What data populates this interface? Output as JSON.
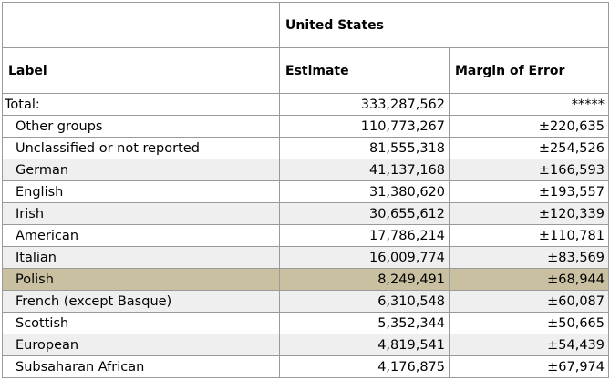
{
  "header": {
    "geo": "United States",
    "label_col": "Label",
    "estimate_col": "Estimate",
    "moe_col": "Margin of Error"
  },
  "rows": [
    {
      "label": "Total:",
      "estimate": "333,287,562",
      "moe": "*****"
    },
    {
      "label": "Other groups",
      "estimate": "110,773,267",
      "moe": "±220,635"
    },
    {
      "label": "Unclassified or not reported",
      "estimate": "81,555,318",
      "moe": "±254,526"
    },
    {
      "label": "German",
      "estimate": "41,137,168",
      "moe": "±166,593"
    },
    {
      "label": "English",
      "estimate": "31,380,620",
      "moe": "±193,557"
    },
    {
      "label": "Irish",
      "estimate": "30,655,612",
      "moe": "±120,339"
    },
    {
      "label": "American",
      "estimate": "17,786,214",
      "moe": "±110,781"
    },
    {
      "label": "Italian",
      "estimate": "16,009,774",
      "moe": "±83,569"
    },
    {
      "label": "Polish",
      "estimate": "8,249,491",
      "moe": "±68,944"
    },
    {
      "label": "French (except Basque)",
      "estimate": "6,310,548",
      "moe": "±60,087"
    },
    {
      "label": "Scottish",
      "estimate": "5,352,344",
      "moe": "±50,665"
    },
    {
      "label": "European",
      "estimate": "4,819,541",
      "moe": "±54,439"
    },
    {
      "label": "Subsaharan African",
      "estimate": "4,176,875",
      "moe": "±67,974"
    }
  ],
  "highlight_color": "#c9c0a1",
  "stripe_color": "#efefef"
}
